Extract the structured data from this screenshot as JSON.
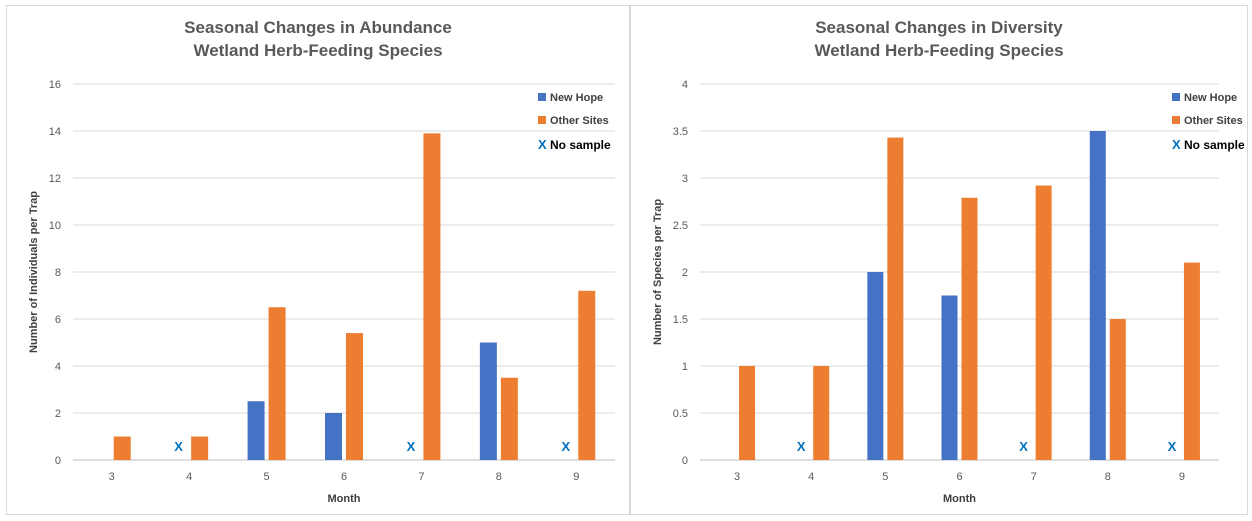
{
  "colors": {
    "new_hope": "#4472C4",
    "other_sites": "#ED7D31",
    "no_sample": "#0070C0",
    "grid": "#D9D9D9",
    "axis": "#BFBFBF"
  },
  "chart_data": [
    {
      "type": "bar",
      "title_lines": [
        "Seasonal Changes in Abundance",
        "Wetland Herb-Feeding Species"
      ],
      "xlabel": "Month",
      "ylabel": "Number of Individuals per Trap",
      "categories": [
        "3",
        "4",
        "5",
        "6",
        "7",
        "8",
        "9"
      ],
      "ylim": [
        0,
        16
      ],
      "yticks": [
        "0",
        "2",
        "4",
        "6",
        "8",
        "10",
        "12",
        "14",
        "16"
      ],
      "grid": true,
      "legend_position": "top-right",
      "series": [
        {
          "name": "New Hope",
          "values": [
            null,
            null,
            2.5,
            2,
            null,
            5,
            null
          ]
        },
        {
          "name": "Other Sites",
          "values": [
            1,
            1,
            6.5,
            5.4,
            13.9,
            3.5,
            7.2
          ]
        }
      ],
      "no_sample_label": "No sample",
      "no_sample_symbol": "X",
      "no_sample_categories": [
        "4",
        "7",
        "9"
      ]
    },
    {
      "type": "bar",
      "title_lines": [
        "Seasonal Changes in Diversity",
        "Wetland Herb-Feeding Species"
      ],
      "xlabel": "Month",
      "ylabel": "Number of Species per Trap",
      "categories": [
        "3",
        "4",
        "5",
        "6",
        "7",
        "8",
        "9"
      ],
      "ylim": [
        0,
        4
      ],
      "yticks": [
        "0",
        "0.5",
        "1",
        "1.5",
        "2",
        "2.5",
        "3",
        "3.5",
        "4"
      ],
      "grid": true,
      "legend_position": "top-right",
      "series": [
        {
          "name": "New Hope",
          "values": [
            null,
            null,
            2,
            1.75,
            null,
            3.5,
            null
          ]
        },
        {
          "name": "Other Sites",
          "values": [
            1,
            1,
            3.43,
            2.79,
            2.92,
            1.5,
            2.1
          ]
        }
      ],
      "no_sample_label": "No sample",
      "no_sample_symbol": "X",
      "no_sample_categories": [
        "4",
        "7",
        "9"
      ]
    }
  ]
}
